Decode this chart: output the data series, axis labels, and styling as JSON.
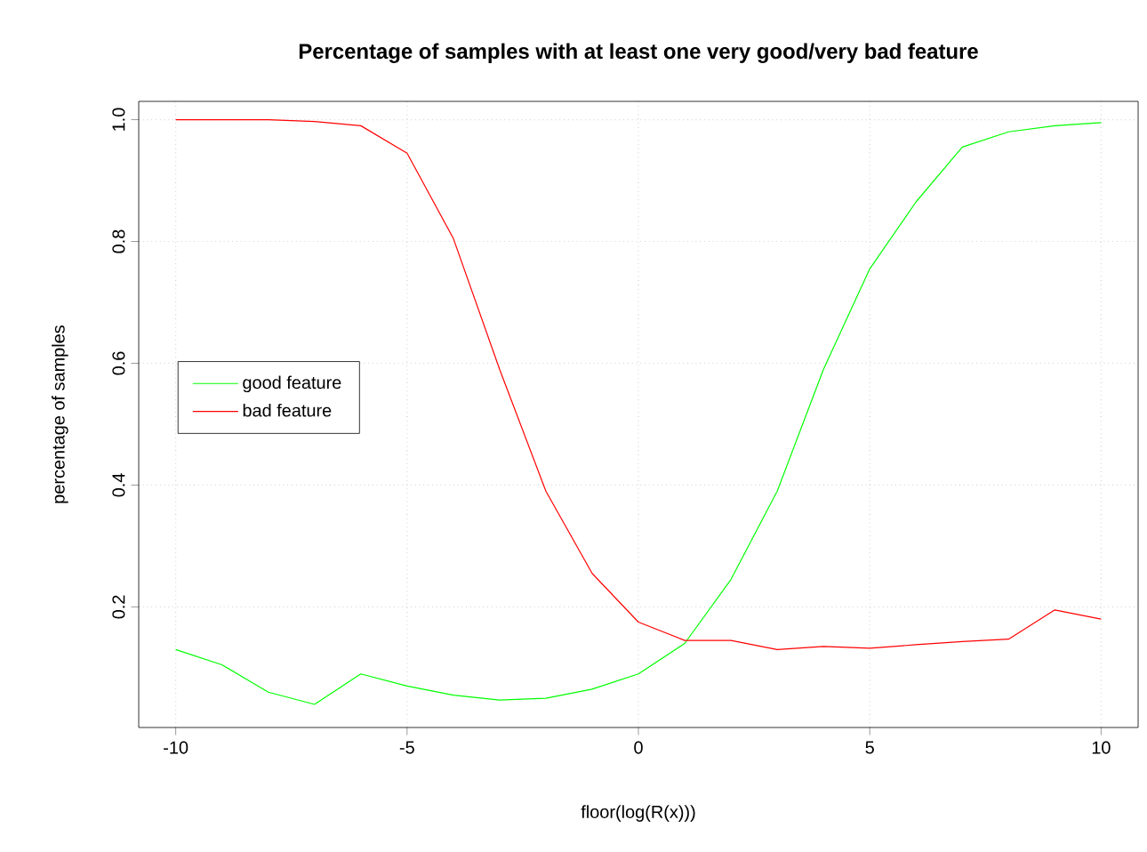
{
  "chart_data": {
    "type": "line",
    "title": "Percentage of samples with at least one very good/very bad feature",
    "xlabel": "floor(log(R(x)))",
    "ylabel": "percentage of samples",
    "x": [
      -10,
      -9,
      -8,
      -7,
      -6,
      -5,
      -4,
      -3,
      -2,
      -1,
      0,
      1,
      2,
      3,
      4,
      5,
      6,
      7,
      8,
      9,
      10
    ],
    "series": [
      {
        "name": "good feature",
        "color": "#00ff00",
        "values": [
          0.13,
          0.105,
          0.06,
          0.04,
          0.09,
          0.07,
          0.055,
          0.047,
          0.05,
          0.065,
          0.09,
          0.14,
          0.245,
          0.39,
          0.59,
          0.755,
          0.865,
          0.955,
          0.98,
          0.99,
          0.995
        ]
      },
      {
        "name": "bad feature",
        "color": "#ff0000",
        "values": [
          1.0,
          1.0,
          1.0,
          0.997,
          0.99,
          0.945,
          0.805,
          0.59,
          0.39,
          0.255,
          0.175,
          0.145,
          0.145,
          0.13,
          0.135,
          0.132,
          0.138,
          0.143,
          0.147,
          0.195,
          0.18
        ]
      }
    ],
    "xlim": [
      -10.8,
      10.8
    ],
    "ylim": [
      0.002,
      1.03
    ],
    "xticks": [
      -10,
      -5,
      0,
      5,
      10
    ],
    "yticks": [
      0.2,
      0.4,
      0.6,
      0.8,
      {
        "value": 1,
        "label": "1.0"
      }
    ],
    "grid": true,
    "legend": "left",
    "marker": "none",
    "line_style": "solid"
  }
}
